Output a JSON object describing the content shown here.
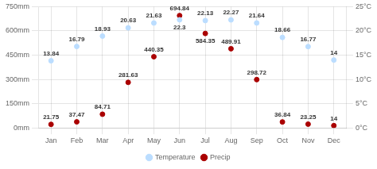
{
  "chart_data": {
    "type": "scatter",
    "categories": [
      "Jan",
      "Feb",
      "Mar",
      "Apr",
      "May",
      "Jun",
      "Jul",
      "Aug",
      "Sep",
      "Oct",
      "Nov",
      "Dec"
    ],
    "series": [
      {
        "name": "Temperature",
        "color": "#bbddff",
        "axis": "y2",
        "values": [
          13.84,
          16.79,
          18.93,
          20.63,
          21.63,
          22.3,
          22.13,
          22.27,
          21.64,
          18.66,
          16.77,
          14
        ]
      },
      {
        "name": "Precip",
        "color": "#aa0000",
        "values": [
          21.75,
          37.47,
          84.71,
          281.63,
          440.35,
          694.84,
          584.35,
          489.91,
          298.72,
          36.84,
          23.25,
          14
        ]
      }
    ],
    "ylim": [
      0,
      750
    ],
    "yticks": [
      {
        "value": 0,
        "label": "0mm"
      },
      {
        "value": 150,
        "label": "150mm"
      },
      {
        "value": 300,
        "label": "300mm"
      },
      {
        "value": 450,
        "label": "450mm"
      },
      {
        "value": 600,
        "label": "600mm"
      },
      {
        "value": 750,
        "label": "750mm"
      }
    ],
    "y2lim": [
      0,
      25
    ],
    "y2ticks": [
      {
        "value": 0,
        "label": "0°C"
      },
      {
        "value": 5,
        "label": "5°C"
      },
      {
        "value": 10,
        "label": "10°C"
      },
      {
        "value": 15,
        "label": "15°C"
      },
      {
        "value": 20,
        "label": "20°C"
      },
      {
        "value": 25,
        "label": "25°C"
      }
    ],
    "grid": true,
    "legend": "bottom",
    "data_labels": true
  }
}
